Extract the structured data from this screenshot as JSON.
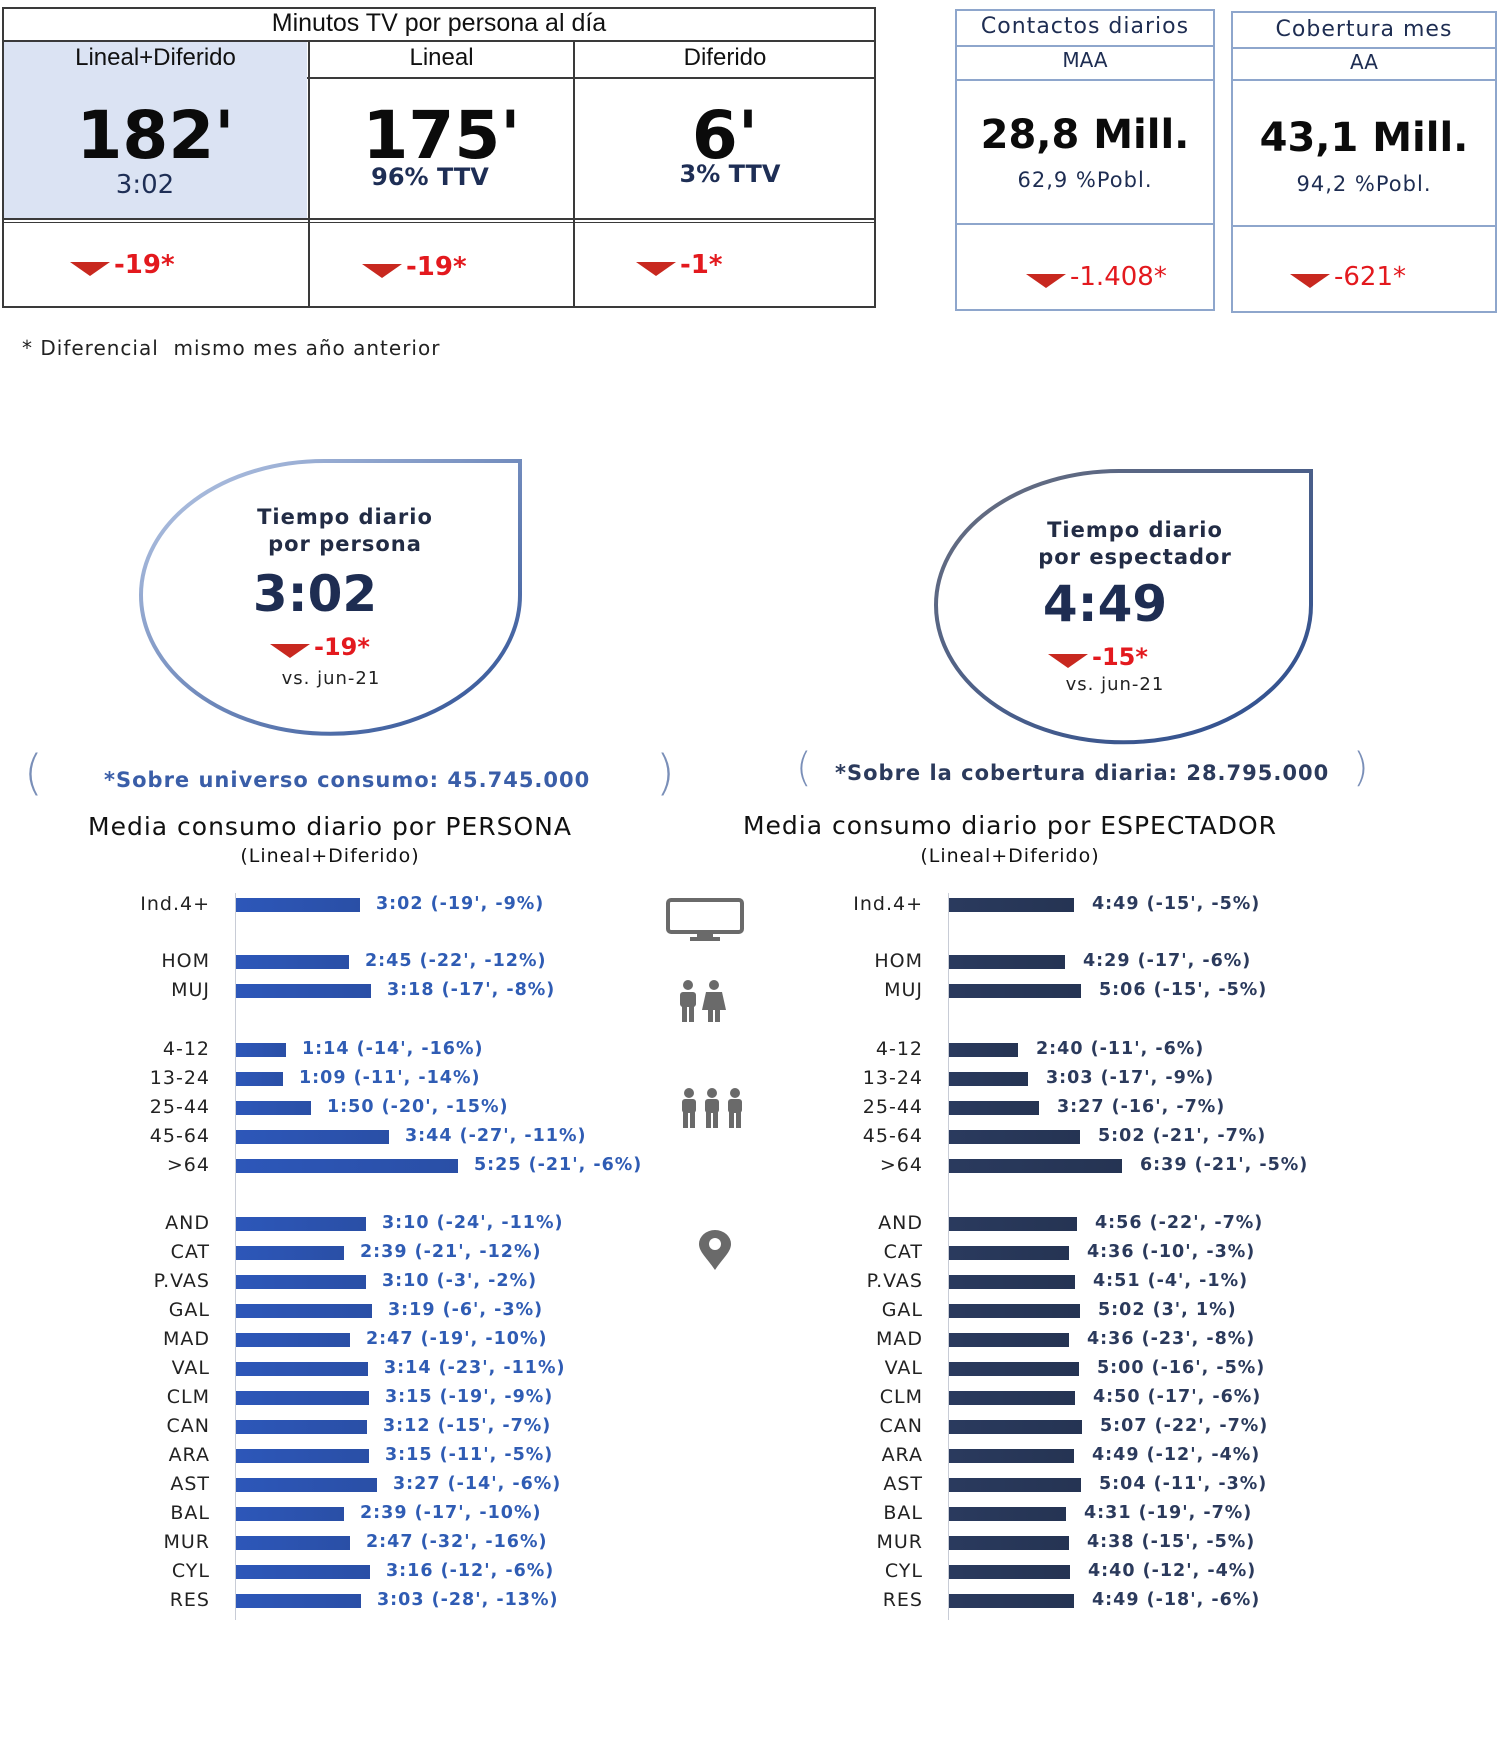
{
  "top_table": {
    "title": "Minutos TV por persona al día",
    "columns": [
      {
        "header": "Lineal+Diferido",
        "value": "182'",
        "sub": "3:02",
        "delta": "-19*"
      },
      {
        "header": "Lineal",
        "value": "175'",
        "sub": "96% TTV",
        "delta": "-19*"
      },
      {
        "header": "Diferido",
        "value": "6'",
        "sub": "3% TTV",
        "delta": "-1*"
      }
    ]
  },
  "cards": [
    {
      "title": "Contactos diarios",
      "subtitle": "MAA",
      "value": "28,8 Mill.",
      "pct": "62,9 %Pobl.",
      "delta": "-1.408*"
    },
    {
      "title": "Cobertura mes",
      "subtitle": "AA",
      "value": "43,1 Mill.",
      "pct": "94,2 %Pobl.",
      "delta": "-621*"
    }
  ],
  "footnote": "* Diferencial  mismo mes año anterior",
  "bubbles": [
    {
      "title1": "Tiempo diario",
      "title2": "por persona",
      "value": "3:02",
      "delta": "-19*",
      "vs": "vs. jun-21"
    },
    {
      "title1": "Tiempo diario",
      "title2": "por espectador",
      "value": "4:49",
      "delta": "-15*",
      "vs": "vs. jun-21"
    }
  ],
  "universe_left": "*Sobre universo consumo: 45.745.000",
  "universe_right": "*Sobre la cobertura diaria: 28.795.000",
  "colors": {
    "persona_bar": "#2d57b9",
    "espectador_bar": "#2a3a5e",
    "delta_red": "#e3191e",
    "triangle": "#c8281f",
    "card_border": "#8ea6cc"
  },
  "icons": [
    "tv-icon",
    "couple-icon",
    "family-icon",
    "location-pin-icon"
  ],
  "chart_data": [
    {
      "type": "bar",
      "orientation": "horizontal",
      "title": "Media consumo diario por PERSONA",
      "subtitle": "(Lineal+Diferido)",
      "unit": "minutes",
      "xlim": [
        0,
        380
      ],
      "categories": [
        "Ind.4+",
        "HOM",
        "MUJ",
        "4-12",
        "13-24",
        "25-44",
        "45-64",
        ">64",
        "AND",
        "CAT",
        "P.VAS",
        "GAL",
        "MAD",
        "VAL",
        "CLM",
        "CAN",
        "ARA",
        "AST",
        "BAL",
        "MUR",
        "CYL",
        "RES"
      ],
      "values": [
        182,
        165,
        198,
        74,
        69,
        110,
        224,
        325,
        190,
        159,
        190,
        199,
        167,
        194,
        195,
        192,
        195,
        207,
        159,
        167,
        196,
        183
      ],
      "labels": [
        "3:02 (-19', -9%)",
        "2:45 (-22', -12%)",
        "3:18 (-17', -8%)",
        "1:14 (-14', -16%)",
        "1:09 (-11', -14%)",
        "1:50 (-20', -15%)",
        "3:44 (-27', -11%)",
        "5:25 (-21', -6%)",
        "3:10 (-24', -11%)",
        "2:39 (-21', -12%)",
        "3:10 (-3', -2%)",
        "3:19 (-6', -3%)",
        "2:47 (-19', -10%)",
        "3:14 (-23', -11%)",
        "3:15 (-19', -9%)",
        "3:12 (-15', -7%)",
        "3:15 (-11', -5%)",
        "3:27 (-14', -6%)",
        "2:39 (-17', -10%)",
        "2:47 (-32', -16%)",
        "3:16 (-12', -6%)",
        "3:03 (-28', -13%)"
      ]
    },
    {
      "type": "bar",
      "orientation": "horizontal",
      "title": "Media consumo diario por ESPECTADOR",
      "subtitle": "(Lineal+Diferido)",
      "unit": "minutes",
      "xlim": [
        0,
        380
      ],
      "categories": [
        "Ind.4+",
        "HOM",
        "MUJ",
        "4-12",
        "13-24",
        "25-44",
        "45-64",
        ">64",
        "AND",
        "CAT",
        "P.VAS",
        "GAL",
        "MAD",
        "VAL",
        "CLM",
        "CAN",
        "ARA",
        "AST",
        "BAL",
        "MUR",
        "CYL",
        "RES"
      ],
      "values": [
        289,
        269,
        306,
        160,
        183,
        207,
        302,
        399,
        296,
        276,
        291,
        302,
        276,
        300,
        290,
        307,
        289,
        304,
        271,
        278,
        280,
        289
      ],
      "labels": [
        "4:49 (-15', -5%)",
        "4:29 (-17', -6%)",
        "5:06 (-15', -5%)",
        "2:40 (-11', -6%)",
        "3:03 (-17', -9%)",
        "3:27 (-16', -7%)",
        "5:02 (-21', -7%)",
        "6:39 (-21', -5%)",
        "4:56 (-22', -7%)",
        "4:36 (-10', -3%)",
        "4:51 (-4', -1%)",
        "5:02 (3', 1%)",
        "4:36 (-23', -8%)",
        "5:00 (-16', -5%)",
        "4:50 (-17', -6%)",
        "5:07 (-22', -7%)",
        "4:49 (-12', -4%)",
        "5:04 (-11', -3%)",
        "4:31 (-19', -7%)",
        "4:38 (-15', -5%)",
        "4:40 (-12', -4%)",
        "4:49 (-18', -6%)"
      ]
    }
  ]
}
